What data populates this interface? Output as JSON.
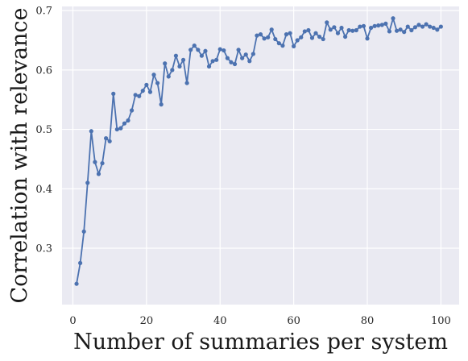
{
  "chart_data": {
    "type": "line",
    "title": "",
    "xlabel": "Number of summaries per system",
    "ylabel": "Correlation with relevance",
    "xlim": [
      -2.95,
      104.95
    ],
    "ylim": [
      0.205,
      0.707
    ],
    "xticks": [
      0,
      20,
      40,
      60,
      80,
      100
    ],
    "yticks": [
      0.3,
      0.4,
      0.5,
      0.6,
      0.7
    ],
    "xtick_labels": [
      "0",
      "20",
      "40",
      "60",
      "80",
      "100"
    ],
    "ytick_labels": [
      "0.3",
      "0.4",
      "0.5",
      "0.6",
      "0.7"
    ],
    "grid": true,
    "background": "#eaeaf2",
    "line_color": "#4c72b0",
    "series": [
      {
        "x": [
          1,
          2,
          3,
          4,
          5,
          6,
          7,
          8,
          9,
          10,
          11,
          12,
          13,
          14,
          15,
          16,
          17,
          18,
          19,
          20,
          21,
          22,
          23,
          24,
          25,
          26,
          27,
          28,
          29,
          30,
          31,
          32,
          33,
          34,
          35,
          36,
          37,
          38,
          39,
          40,
          41,
          42,
          43,
          44,
          45,
          46,
          47,
          48,
          49,
          50,
          51,
          52,
          53,
          54,
          55,
          56,
          57,
          58,
          59,
          60,
          61,
          62,
          63,
          64,
          65,
          66,
          67,
          68,
          69,
          70,
          71,
          72,
          73,
          74,
          75,
          76,
          77,
          78,
          79,
          80,
          81,
          82,
          83,
          84,
          85,
          86,
          87,
          88,
          89,
          90,
          91,
          92,
          93,
          94,
          95,
          96,
          97,
          98,
          99,
          100
        ],
        "values": [
          0.24,
          0.275,
          0.328,
          0.41,
          0.497,
          0.445,
          0.425,
          0.443,
          0.485,
          0.48,
          0.56,
          0.5,
          0.502,
          0.51,
          0.515,
          0.532,
          0.558,
          0.556,
          0.565,
          0.575,
          0.563,
          0.592,
          0.578,
          0.542,
          0.611,
          0.589,
          0.6,
          0.624,
          0.606,
          0.617,
          0.578,
          0.634,
          0.641,
          0.634,
          0.624,
          0.632,
          0.606,
          0.615,
          0.617,
          0.635,
          0.633,
          0.62,
          0.613,
          0.61,
          0.634,
          0.62,
          0.626,
          0.615,
          0.627,
          0.658,
          0.66,
          0.653,
          0.655,
          0.668,
          0.652,
          0.645,
          0.641,
          0.66,
          0.662,
          0.64,
          0.65,
          0.655,
          0.665,
          0.667,
          0.654,
          0.662,
          0.656,
          0.652,
          0.68,
          0.668,
          0.672,
          0.662,
          0.671,
          0.656,
          0.667,
          0.666,
          0.667,
          0.673,
          0.674,
          0.653,
          0.671,
          0.674,
          0.675,
          0.676,
          0.678,
          0.665,
          0.687,
          0.666,
          0.668,
          0.664,
          0.673,
          0.667,
          0.672,
          0.676,
          0.673,
          0.677,
          0.673,
          0.671,
          0.668,
          0.673
        ]
      }
    ]
  }
}
